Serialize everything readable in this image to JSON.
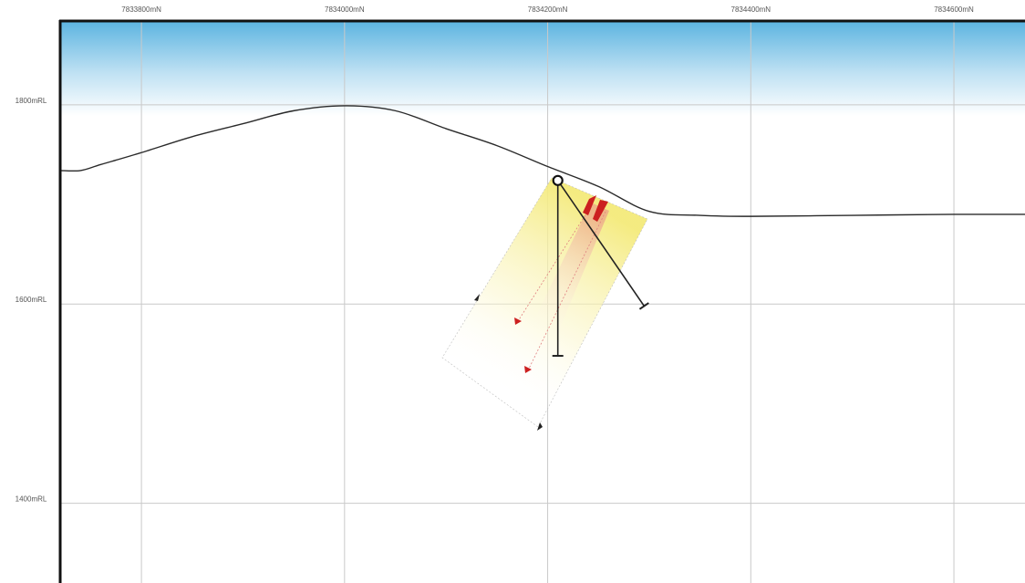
{
  "northing_ticks": [
    {
      "label": "7833800mN",
      "value": 7833800
    },
    {
      "label": "7834000mN",
      "value": 7834000
    },
    {
      "label": "7834200mN",
      "value": 7834200
    },
    {
      "label": "7834400mN",
      "value": 7834400
    },
    {
      "label": "7834600mN",
      "value": 7834600
    }
  ],
  "rl_ticks": [
    {
      "label": "1800mRL",
      "value": 1800
    },
    {
      "label": "1600mRL",
      "value": 1600
    },
    {
      "label": "1400mRL",
      "value": 1400
    }
  ],
  "axis_ranges": {
    "northing": [
      7833720,
      7834670
    ],
    "rl": [
      1320,
      1885
    ]
  },
  "colors": {
    "sky_top": "#5ab3e0",
    "frame": "#111111",
    "grid": "#c9c9c9",
    "topography": "#2a2a2a",
    "corridor_fill": "#f4ea7a",
    "structure_red": "#cc2020",
    "drill_hole": "#222222"
  },
  "topography_profile": [
    [
      7833720,
      1734
    ],
    [
      7833740,
      1734
    ],
    [
      7833760,
      1740
    ],
    [
      7833800,
      1752
    ],
    [
      7833850,
      1768
    ],
    [
      7833900,
      1781
    ],
    [
      7833950,
      1794
    ],
    [
      7834000,
      1799
    ],
    [
      7834050,
      1794
    ],
    [
      7834100,
      1776
    ],
    [
      7834150,
      1759
    ],
    [
      7834200,
      1738
    ],
    [
      7834250,
      1718
    ],
    [
      7834300,
      1693
    ],
    [
      7834350,
      1689
    ],
    [
      7834400,
      1688
    ],
    [
      7834500,
      1689
    ],
    [
      7834600,
      1690
    ],
    [
      7834670,
      1690
    ]
  ],
  "collar": {
    "northing": 7834210,
    "rl": 1724
  },
  "drill_holes": [
    {
      "name": "vertical",
      "end": [
        7834210,
        1548
      ]
    },
    {
      "name": "inclined",
      "end": [
        7834295,
        1598
      ]
    }
  ]
}
